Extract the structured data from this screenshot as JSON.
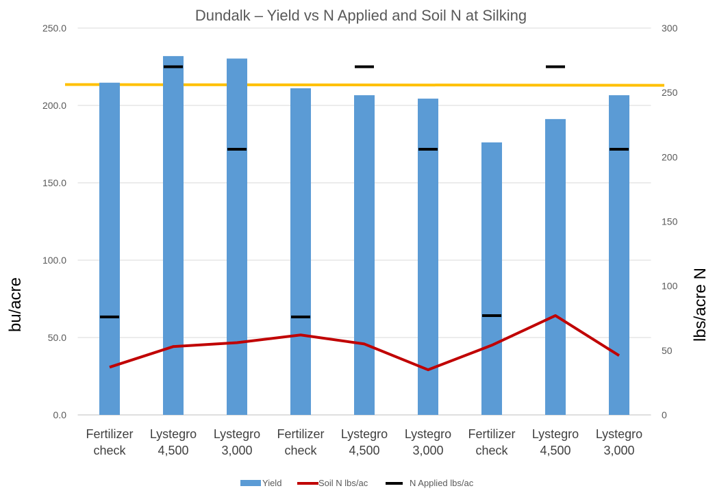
{
  "chart_data": {
    "type": "bar",
    "title": "Dundalk – Yield vs N Applied and Soil N at Silking",
    "ylabel": "bu/acre",
    "y2label": "lbs/acre N",
    "ylim": [
      0,
      250
    ],
    "y2lim": [
      0,
      300
    ],
    "yticks": [
      "0.0",
      "50.0",
      "100.0",
      "150.0",
      "200.0",
      "250.0"
    ],
    "y2ticks": [
      "0",
      "50",
      "100",
      "150",
      "200",
      "250",
      "300"
    ],
    "grid": true,
    "legend_position": "bottom",
    "categories": [
      [
        "Fertilizer",
        "check"
      ],
      [
        "Lystegro",
        "4,500"
      ],
      [
        "Lystegro",
        "3,000"
      ],
      [
        "Fertilizer",
        "check"
      ],
      [
        "Lystegro",
        "4,500"
      ],
      [
        "Lystegro",
        "3,000"
      ],
      [
        "Fertilizer",
        "check"
      ],
      [
        "Lystegro",
        "4,500"
      ],
      [
        "Lystegro",
        "3,000"
      ]
    ],
    "series": [
      {
        "name": "Yield",
        "type": "bar",
        "axis": "left",
        "color": "#5B9BD5",
        "values": [
          214.7,
          231.9,
          230.3,
          211.1,
          206.6,
          204.4,
          176.1,
          191.2,
          206.6
        ]
      },
      {
        "name": "Soil N lbs/ac",
        "type": "line",
        "axis": "right",
        "color": "#C00000",
        "values": [
          37,
          53,
          56,
          62,
          55,
          35,
          54,
          77,
          46
        ]
      },
      {
        "name": "N Applied lbs/ac",
        "type": "marker",
        "axis": "right",
        "color": "#000000",
        "values": [
          76,
          270,
          206,
          76,
          270,
          206,
          77,
          270,
          206
        ]
      }
    ],
    "reference_line": {
      "axis": "left",
      "color": "#FFC000",
      "values": [
        213.5,
        213.0
      ]
    }
  }
}
